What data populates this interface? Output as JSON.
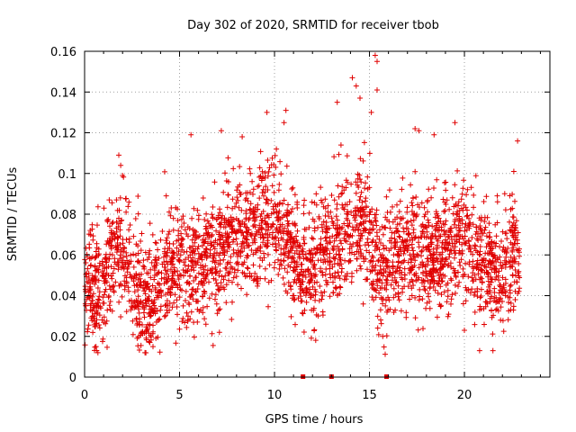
{
  "chart_data": {
    "type": "scatter",
    "title": "Day 302 of 2020, SRMTID for receiver tbob",
    "xlabel": "GPS time / hours",
    "ylabel": "SRMTID / TECUs",
    "xlim": [
      0,
      24.5
    ],
    "ylim": [
      0,
      0.16
    ],
    "grid": true,
    "marker": "plus",
    "color": "#e00000",
    "x_ticks": [
      0,
      5,
      10,
      15,
      20
    ],
    "x_tick_labels": [
      "0",
      "5",
      "10",
      "15",
      "20"
    ],
    "y_ticks": [
      0,
      0.02,
      0.04,
      0.06,
      0.08,
      0.1,
      0.12,
      0.14,
      0.16
    ],
    "y_tick_labels": [
      "0",
      "0.02",
      "0.04",
      "0.06",
      "0.08",
      "0.1",
      "0.12",
      "0.14",
      "0.16"
    ],
    "gap_markers_x": [
      11.5,
      13.0,
      15.9
    ],
    "trend": [
      {
        "x": 0.0,
        "y": 0.048
      },
      {
        "x": 0.5,
        "y": 0.04
      },
      {
        "x": 1.0,
        "y": 0.045
      },
      {
        "x": 1.5,
        "y": 0.06
      },
      {
        "x": 2.0,
        "y": 0.065
      },
      {
        "x": 2.5,
        "y": 0.05
      },
      {
        "x": 3.0,
        "y": 0.038
      },
      {
        "x": 3.5,
        "y": 0.036
      },
      {
        "x": 4.0,
        "y": 0.045
      },
      {
        "x": 4.5,
        "y": 0.058
      },
      {
        "x": 5.0,
        "y": 0.055
      },
      {
        "x": 5.5,
        "y": 0.052
      },
      {
        "x": 6.0,
        "y": 0.055
      },
      {
        "x": 6.5,
        "y": 0.058
      },
      {
        "x": 7.0,
        "y": 0.062
      },
      {
        "x": 7.5,
        "y": 0.065
      },
      {
        "x": 8.0,
        "y": 0.068
      },
      {
        "x": 8.5,
        "y": 0.07
      },
      {
        "x": 9.0,
        "y": 0.072
      },
      {
        "x": 9.5,
        "y": 0.076
      },
      {
        "x": 10.0,
        "y": 0.078
      },
      {
        "x": 10.5,
        "y": 0.07
      },
      {
        "x": 11.0,
        "y": 0.06
      },
      {
        "x": 11.5,
        "y": 0.052
      },
      {
        "x": 12.0,
        "y": 0.055
      },
      {
        "x": 12.5,
        "y": 0.06
      },
      {
        "x": 13.0,
        "y": 0.063
      },
      {
        "x": 13.5,
        "y": 0.068
      },
      {
        "x": 14.0,
        "y": 0.07
      },
      {
        "x": 14.5,
        "y": 0.075
      },
      {
        "x": 15.0,
        "y": 0.075
      },
      {
        "x": 15.5,
        "y": 0.05
      },
      {
        "x": 16.0,
        "y": 0.055
      },
      {
        "x": 16.5,
        "y": 0.06
      },
      {
        "x": 17.0,
        "y": 0.062
      },
      {
        "x": 17.5,
        "y": 0.065
      },
      {
        "x": 18.0,
        "y": 0.06
      },
      {
        "x": 18.5,
        "y": 0.058
      },
      {
        "x": 19.0,
        "y": 0.062
      },
      {
        "x": 19.5,
        "y": 0.065
      },
      {
        "x": 20.0,
        "y": 0.068
      },
      {
        "x": 20.5,
        "y": 0.062
      },
      {
        "x": 21.0,
        "y": 0.055
      },
      {
        "x": 21.5,
        "y": 0.05
      },
      {
        "x": 22.0,
        "y": 0.052
      },
      {
        "x": 22.5,
        "y": 0.058
      },
      {
        "x": 22.9,
        "y": 0.06
      }
    ],
    "spread": 0.014,
    "points_per_hour": 130,
    "x_range": [
      0.0,
      22.9
    ],
    "outliers": [
      {
        "x": 0.3,
        "y": 0.072
      },
      {
        "x": 0.6,
        "y": 0.015
      },
      {
        "x": 0.7,
        "y": 0.012
      },
      {
        "x": 1.8,
        "y": 0.109
      },
      {
        "x": 1.9,
        "y": 0.104
      },
      {
        "x": 2.0,
        "y": 0.099
      },
      {
        "x": 3.6,
        "y": 0.015
      },
      {
        "x": 4.3,
        "y": 0.089
      },
      {
        "x": 5.6,
        "y": 0.119
      },
      {
        "x": 7.2,
        "y": 0.121
      },
      {
        "x": 7.1,
        "y": 0.022
      },
      {
        "x": 8.3,
        "y": 0.118
      },
      {
        "x": 9.6,
        "y": 0.13
      },
      {
        "x": 10.6,
        "y": 0.131
      },
      {
        "x": 10.5,
        "y": 0.125
      },
      {
        "x": 10.1,
        "y": 0.112
      },
      {
        "x": 12.3,
        "y": 0.03
      },
      {
        "x": 13.3,
        "y": 0.135
      },
      {
        "x": 13.5,
        "y": 0.114
      },
      {
        "x": 14.1,
        "y": 0.147
      },
      {
        "x": 14.3,
        "y": 0.143
      },
      {
        "x": 14.5,
        "y": 0.137
      },
      {
        "x": 15.1,
        "y": 0.13
      },
      {
        "x": 15.3,
        "y": 0.158
      },
      {
        "x": 15.4,
        "y": 0.155
      },
      {
        "x": 15.4,
        "y": 0.141
      },
      {
        "x": 15.7,
        "y": 0.02
      },
      {
        "x": 17.4,
        "y": 0.122
      },
      {
        "x": 17.6,
        "y": 0.121
      },
      {
        "x": 18.4,
        "y": 0.119
      },
      {
        "x": 19.5,
        "y": 0.125
      },
      {
        "x": 20.0,
        "y": 0.023
      },
      {
        "x": 20.8,
        "y": 0.013
      },
      {
        "x": 21.5,
        "y": 0.013
      },
      {
        "x": 22.8,
        "y": 0.116
      },
      {
        "x": 22.6,
        "y": 0.101
      }
    ]
  }
}
